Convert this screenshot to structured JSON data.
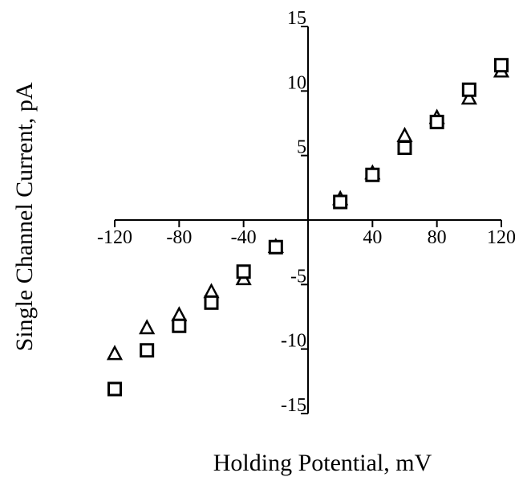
{
  "chart_data": {
    "type": "scatter",
    "xlabel": "Holding Potential, mV",
    "ylabel": "Single Channel Current, pA",
    "xlim": [
      -120,
      120
    ],
    "ylim": [
      -15,
      15
    ],
    "x_ticks": [
      -120,
      -80,
      -40,
      40,
      80,
      120
    ],
    "x_tick_labels": [
      "-120",
      "-80",
      "-40",
      "40",
      "80",
      "120"
    ],
    "y_ticks": [
      15,
      10,
      5,
      -5,
      -10,
      -15
    ],
    "y_tick_labels": [
      "15",
      "10",
      "5",
      "-5",
      "-10",
      "-15"
    ],
    "grid": false,
    "legend": "none",
    "axes_style": "crossing at origin",
    "series": [
      {
        "marker": "triangle",
        "color": "#000000",
        "x": [
          -120,
          -100,
          -80,
          -60,
          -40,
          -20,
          20,
          40,
          60,
          80,
          100,
          120
        ],
        "y": [
          -10.4,
          -8.4,
          -7.4,
          -5.6,
          -4.6,
          -2.1,
          1.6,
          3.6,
          6.5,
          7.9,
          9.4,
          11.5
        ]
      },
      {
        "marker": "square",
        "color": "#000000",
        "x": [
          -120,
          -100,
          -80,
          -60,
          -40,
          -20,
          20,
          40,
          60,
          80,
          100,
          120
        ],
        "y": [
          -13.1,
          -10.1,
          -8.2,
          -6.4,
          -4.0,
          -2.1,
          1.4,
          3.5,
          5.6,
          7.6,
          10.1,
          12.0
        ]
      }
    ]
  }
}
